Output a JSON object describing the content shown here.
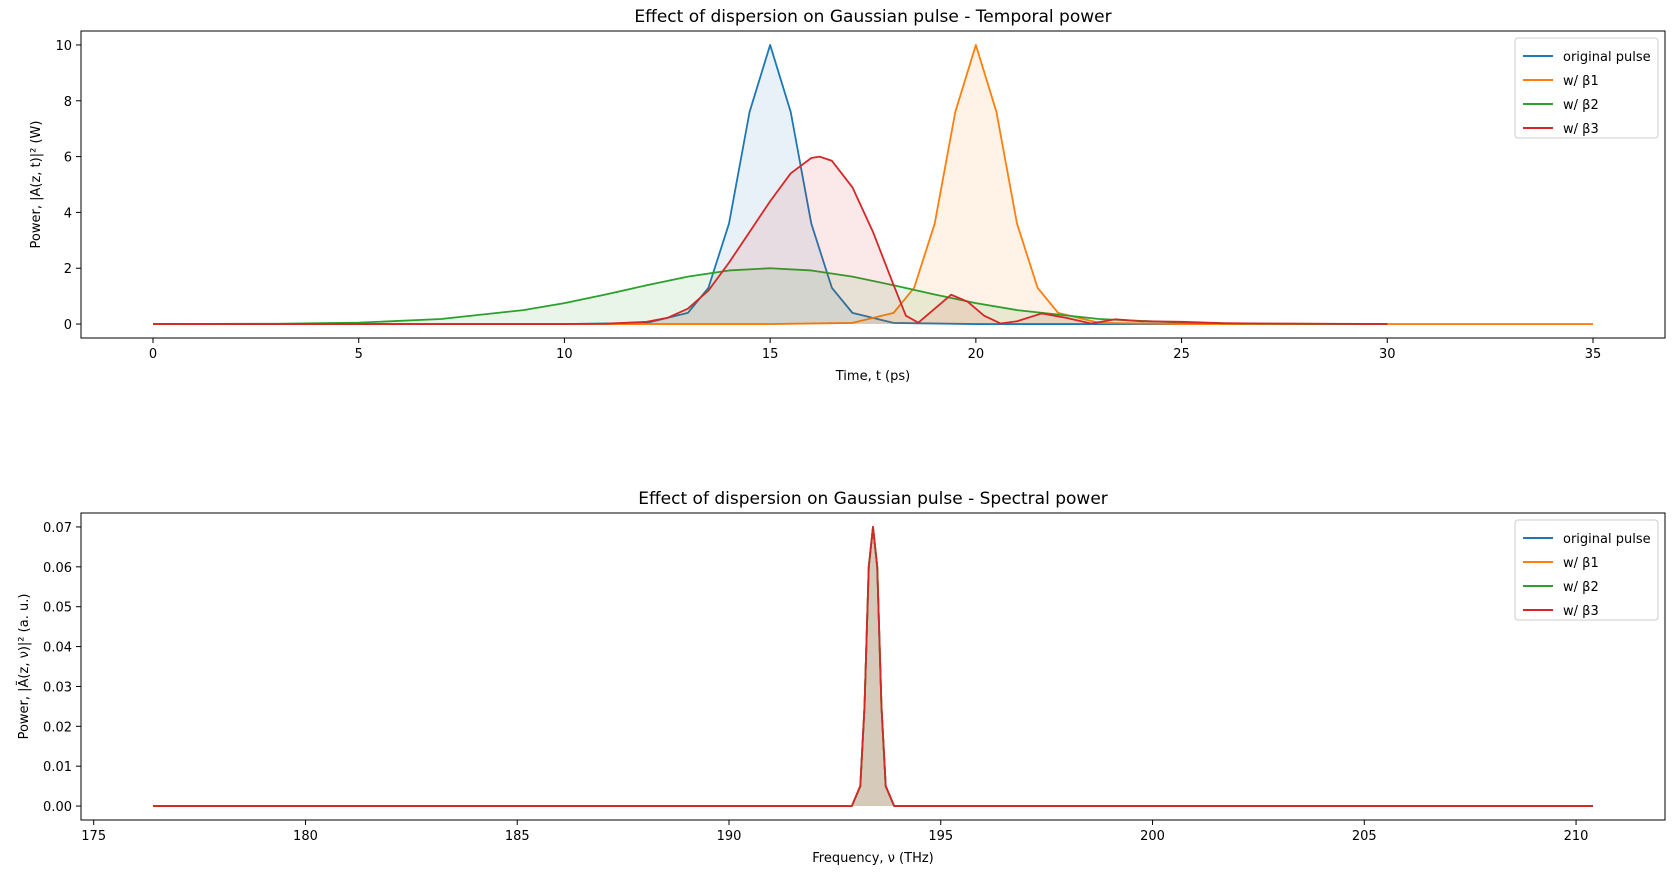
{
  "chart_data": [
    {
      "type": "line",
      "title": "Effect of dispersion on Gaussian pulse - Temporal power",
      "xlabel": "Time, t (ps)",
      "ylabel": "Power, |A(z, t)|² (W)",
      "xlim": [
        -1.75,
        36.75
      ],
      "ylim": [
        -0.5,
        10.5
      ],
      "xticks": [
        0,
        5,
        10,
        15,
        20,
        25,
        30,
        35
      ],
      "yticks": [
        0,
        2,
        4,
        6,
        8,
        10
      ],
      "grid": false,
      "filled": true,
      "legend": {
        "position": "top-right"
      },
      "series": [
        {
          "name": "original pulse",
          "color": "#1f77b4",
          "x": [
            0,
            5,
            10,
            12,
            13,
            13.5,
            14,
            14.5,
            15,
            15.5,
            16,
            16.5,
            17,
            18,
            20,
            25,
            30
          ],
          "y": [
            0,
            0,
            0,
            0.04,
            0.4,
            1.3,
            3.6,
            7.6,
            10,
            7.6,
            3.6,
            1.3,
            0.4,
            0.04,
            0,
            0,
            0
          ]
        },
        {
          "name": "w/ β1",
          "color": "#ff7f0e",
          "x": [
            0,
            5,
            10,
            15,
            17,
            18,
            18.5,
            19,
            19.5,
            20,
            20.5,
            21,
            21.5,
            22,
            23,
            25,
            30,
            35
          ],
          "y": [
            0,
            0,
            0,
            0,
            0.04,
            0.4,
            1.3,
            3.6,
            7.6,
            10,
            7.6,
            3.6,
            1.3,
            0.4,
            0.04,
            0,
            0,
            0
          ]
        },
        {
          "name": "w/ β2",
          "color": "#2ca02c",
          "x": [
            0,
            3,
            5,
            7,
            9,
            10,
            11,
            12,
            13,
            14,
            15,
            16,
            17,
            18,
            19,
            20,
            21,
            23,
            25,
            27,
            30
          ],
          "y": [
            0,
            0.01,
            0.05,
            0.18,
            0.5,
            0.75,
            1.06,
            1.39,
            1.7,
            1.92,
            2.0,
            1.92,
            1.7,
            1.39,
            1.06,
            0.75,
            0.5,
            0.18,
            0.05,
            0.01,
            0
          ]
        },
        {
          "name": "w/ β3",
          "color": "#d62728",
          "x": [
            0,
            5,
            10,
            11,
            12,
            12.5,
            13,
            13.5,
            14,
            14.5,
            15,
            15.5,
            16,
            16.2,
            16.5,
            17,
            17.5,
            18,
            18.3,
            18.6,
            19,
            19.4,
            19.8,
            20.2,
            20.6,
            21,
            21.6,
            22.2,
            22.8,
            23.4,
            24,
            25,
            26,
            27,
            30
          ],
          "y": [
            0,
            0,
            0,
            0.01,
            0.08,
            0.22,
            0.55,
            1.2,
            2.2,
            3.3,
            4.4,
            5.4,
            5.95,
            6.0,
            5.85,
            4.9,
            3.3,
            1.4,
            0.3,
            0.05,
            0.55,
            1.05,
            0.8,
            0.3,
            0.02,
            0.1,
            0.38,
            0.22,
            0.02,
            0.17,
            0.1,
            0.08,
            0.03,
            0.02,
            0
          ]
        }
      ]
    },
    {
      "type": "line",
      "title": "Effect of dispersion on Gaussian pulse - Spectral power",
      "xlabel": "Frequency, ν (THz)",
      "ylabel": "Power, |Ã(z, ν)|² (a. u.)",
      "xlim": [
        174.7,
        212.1
      ],
      "ylim": [
        -0.0035,
        0.0735
      ],
      "xticks": [
        175,
        180,
        185,
        190,
        195,
        200,
        205,
        210
      ],
      "yticks": [
        0.0,
        0.01,
        0.02,
        0.03,
        0.04,
        0.05,
        0.06,
        0.07
      ],
      "grid": false,
      "filled": true,
      "legend": {
        "position": "top-right"
      },
      "series": [
        {
          "name": "original pulse",
          "color": "#1f77b4",
          "x": [
            176.4,
            192.9,
            193.1,
            193.2,
            193.3,
            193.4,
            193.5,
            193.6,
            193.7,
            193.9,
            210.4
          ],
          "y": [
            0,
            0,
            0.005,
            0.025,
            0.06,
            0.07,
            0.06,
            0.025,
            0.005,
            0,
            0
          ]
        },
        {
          "name": "w/ β1",
          "color": "#ff7f0e",
          "x": [
            176.4,
            192.9,
            193.1,
            193.2,
            193.3,
            193.4,
            193.5,
            193.6,
            193.7,
            193.9,
            210.4
          ],
          "y": [
            0,
            0,
            0.005,
            0.025,
            0.06,
            0.07,
            0.06,
            0.025,
            0.005,
            0,
            0
          ]
        },
        {
          "name": "w/ β2",
          "color": "#2ca02c",
          "x": [
            176.4,
            192.9,
            193.1,
            193.2,
            193.3,
            193.4,
            193.5,
            193.6,
            193.7,
            193.9,
            210.4
          ],
          "y": [
            0,
            0,
            0.005,
            0.025,
            0.06,
            0.07,
            0.06,
            0.025,
            0.005,
            0,
            0
          ]
        },
        {
          "name": "w/ β3",
          "color": "#d62728",
          "x": [
            176.4,
            192.9,
            193.1,
            193.2,
            193.3,
            193.4,
            193.5,
            193.6,
            193.7,
            193.9,
            210.4
          ],
          "y": [
            0,
            0,
            0.005,
            0.025,
            0.06,
            0.07,
            0.06,
            0.025,
            0.005,
            0,
            0
          ]
        }
      ]
    }
  ]
}
